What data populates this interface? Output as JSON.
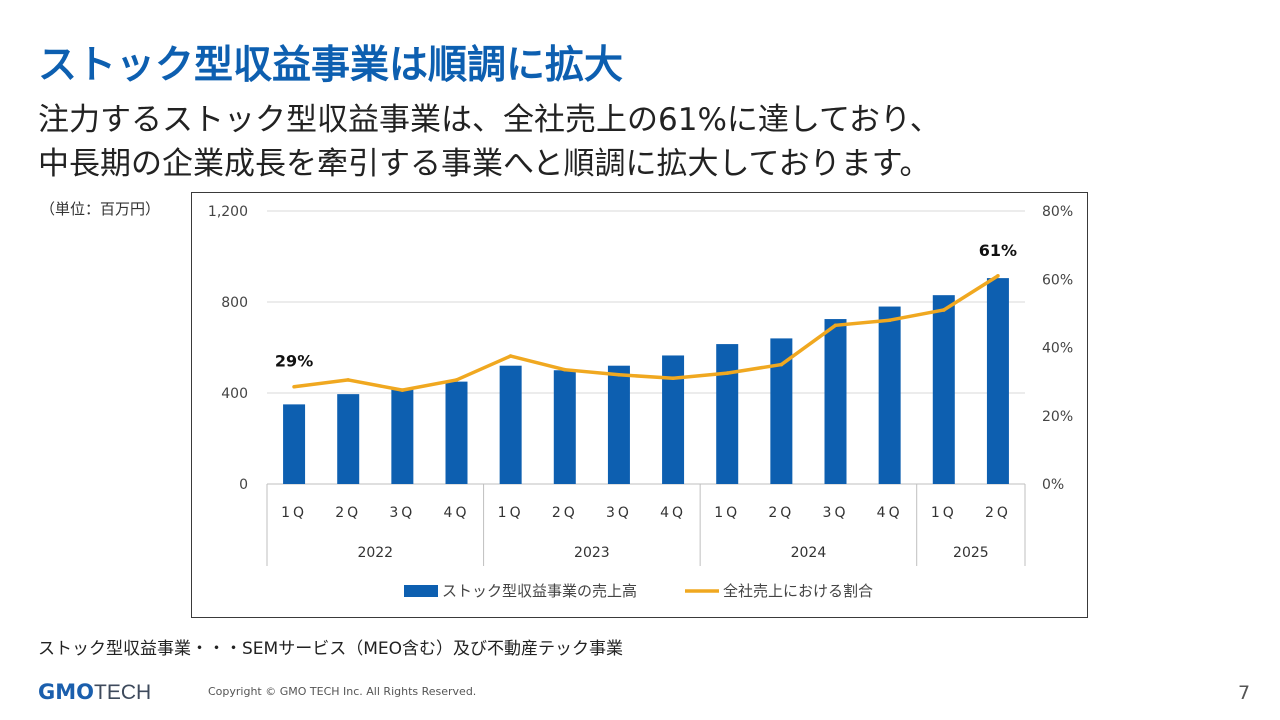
{
  "slide": {
    "title": "ストック型収益事業は順調に拡大",
    "lead_line1": "注力するストック型収益事業は、全社売上の61%に達しており、",
    "lead_line2": "中長期の企業成長を牽引する事業へと順調に拡大しております。",
    "unit_note": "（単位：百万円）",
    "footnote": "ストック型収益事業・・・SEMサービス（MEO含む）及び不動産テック事業",
    "logo_gmo": "GMO",
    "logo_tech": "TECH",
    "copyright": "Copyright © GMO TECH Inc. All Rights Reserved.",
    "page_number": "7"
  },
  "chart_data": {
    "type": "bar",
    "categories": [
      "1Q",
      "2Q",
      "3Q",
      "4Q",
      "1Q",
      "2Q",
      "3Q",
      "4Q",
      "1Q",
      "2Q",
      "3Q",
      "4Q",
      "1Q",
      "2Q"
    ],
    "year_groups": [
      {
        "label": "2022",
        "count": 4
      },
      {
        "label": "2023",
        "count": 4
      },
      {
        "label": "2024",
        "count": 4
      },
      {
        "label": "2025",
        "count": 2
      }
    ],
    "series": [
      {
        "name": "ストック型収益事業の売上高",
        "type": "bar",
        "axis": "left",
        "color": "#0d5fb0",
        "values": [
          350,
          395,
          420,
          450,
          520,
          500,
          520,
          565,
          615,
          640,
          725,
          780,
          830,
          905
        ]
      },
      {
        "name": "全社売上における割合",
        "type": "line",
        "axis": "right",
        "color": "#f0a820",
        "values": [
          28.5,
          30.5,
          27.5,
          30.5,
          37.5,
          33.5,
          32.0,
          31.0,
          32.5,
          35.0,
          46.5,
          48.0,
          51.0,
          61.0
        ]
      }
    ],
    "left_axis": {
      "min": 0,
      "max": 1200,
      "ticks": [
        0,
        400,
        800,
        1200
      ],
      "tick_labels": [
        "0",
        "400",
        "800",
        "1,200"
      ]
    },
    "right_axis": {
      "min": 0,
      "max": 80,
      "ticks": [
        0,
        20,
        40,
        60,
        80
      ],
      "tick_labels": [
        "0%",
        "20%",
        "40%",
        "60%",
        "80%"
      ]
    },
    "annotations": [
      {
        "index": 0,
        "series": 1,
        "text": "29%"
      },
      {
        "index": 13,
        "series": 1,
        "text": "61%"
      }
    ],
    "grid": true,
    "legend_position": "bottom"
  }
}
